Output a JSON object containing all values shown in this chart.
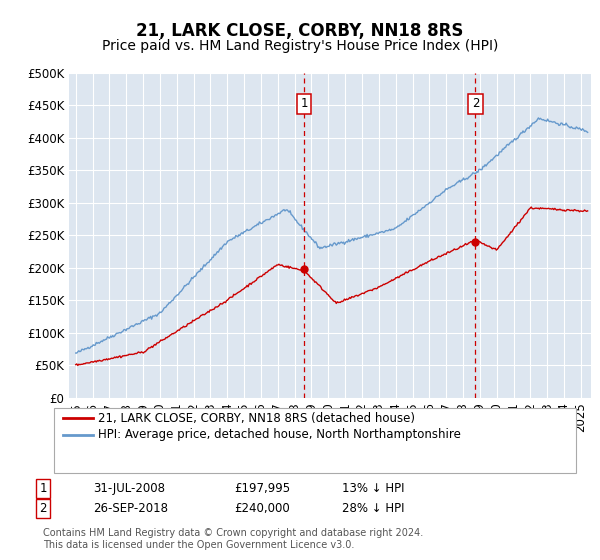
{
  "title": "21, LARK CLOSE, CORBY, NN18 8RS",
  "subtitle": "Price paid vs. HM Land Registry's House Price Index (HPI)",
  "ylim": [
    0,
    500000
  ],
  "yticks": [
    0,
    50000,
    100000,
    150000,
    200000,
    250000,
    300000,
    350000,
    400000,
    450000,
    500000
  ],
  "ytick_labels": [
    "£0",
    "£50K",
    "£100K",
    "£150K",
    "£200K",
    "£250K",
    "£300K",
    "£350K",
    "£400K",
    "£450K",
    "£500K"
  ],
  "xlim_start": 1994.6,
  "xlim_end": 2025.6,
  "background_color": "#ffffff",
  "plot_bg_color": "#dde6f0",
  "grid_color": "#ffffff",
  "sale1_x": 2008.58,
  "sale1_y": 197995,
  "sale1_label": "1",
  "sale1_date": "31-JUL-2008",
  "sale1_price": "£197,995",
  "sale1_pct": "13% ↓ HPI",
  "sale2_x": 2018.74,
  "sale2_y": 240000,
  "sale2_label": "2",
  "sale2_date": "26-SEP-2018",
  "sale2_price": "£240,000",
  "sale2_pct": "28% ↓ HPI",
  "line_red_color": "#cc0000",
  "line_blue_color": "#6699cc",
  "legend_label_red": "21, LARK CLOSE, CORBY, NN18 8RS (detached house)",
  "legend_label_blue": "HPI: Average price, detached house, North Northamptonshire",
  "footer": "Contains HM Land Registry data © Crown copyright and database right 2024.\nThis data is licensed under the Open Government Licence v3.0.",
  "title_fontsize": 12,
  "subtitle_fontsize": 10,
  "tick_fontsize": 8.5,
  "legend_fontsize": 8.5,
  "footer_fontsize": 7.0
}
